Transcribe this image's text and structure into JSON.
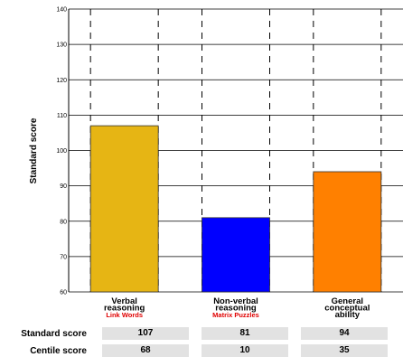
{
  "chart_data": {
    "type": "bar",
    "ylabel": "Standard score",
    "ylim": [
      60,
      140
    ],
    "yticks": [
      60,
      70,
      80,
      90,
      100,
      110,
      120,
      130,
      140
    ],
    "grid": true,
    "categories": [
      {
        "lines": [
          "Verbal",
          "reasoning"
        ],
        "sub": "Link Words",
        "sub_color": "#e00000"
      },
      {
        "lines": [
          "Non-verbal",
          "reasoning"
        ],
        "sub": "Matrix Puzzles",
        "sub_color": "#e00000"
      },
      {
        "lines": [
          "General",
          "conceptual",
          "ability"
        ],
        "sub": "",
        "sub_color": "#e00000"
      }
    ],
    "values": [
      107,
      81,
      94
    ],
    "colors": [
      "#e6b514",
      "#0000ff",
      "#ff8000"
    ]
  },
  "table": {
    "standard_label": "Standard score",
    "centile_label": "Centile score",
    "standard_scores": [
      "107",
      "81",
      "94"
    ],
    "centile_scores": [
      "68",
      "10",
      "35"
    ]
  }
}
